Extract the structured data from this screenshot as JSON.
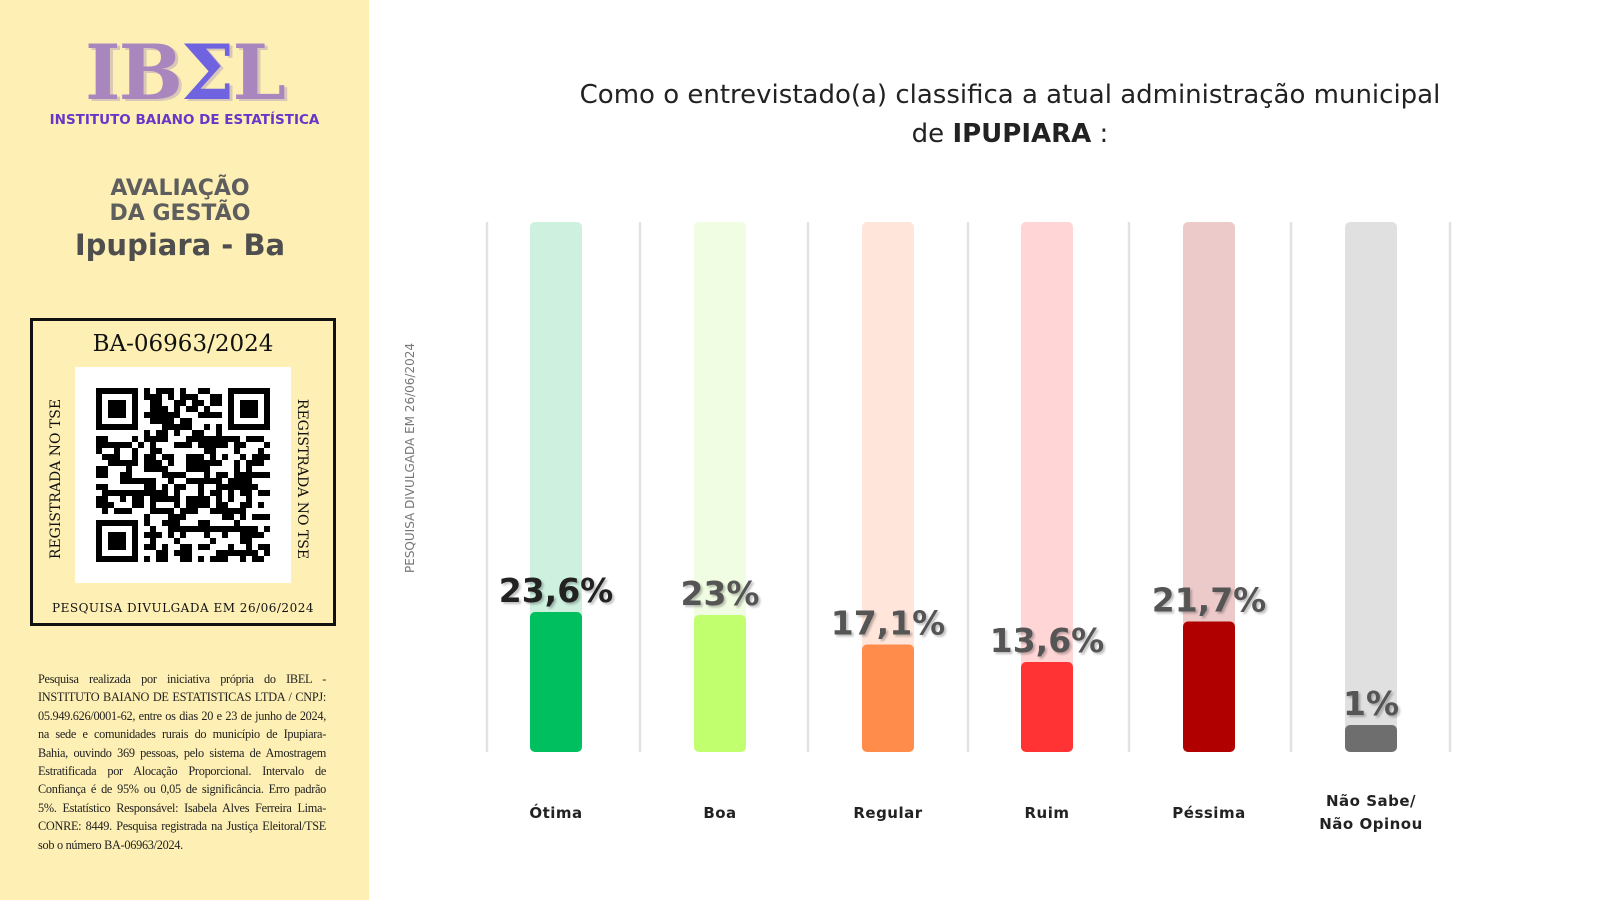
{
  "sidebar": {
    "logo": {
      "prefix": "IB",
      "sigma": "Σ",
      "suffix": "L"
    },
    "institute": "INSTITUTO BAIANO DE ESTATÍSTICA",
    "heading": "AVALIAÇÃO DA GESTÃO",
    "city": "Ipupiara - Ba",
    "registration": {
      "number": "BA-06963/2024",
      "side_left": "REGISTRADA NO TSE",
      "side_right": "REGISTRADA NO TSE",
      "footer": "PESQUISA DIVULGADA EM 26/06/2024"
    },
    "note": "Pesquisa realizada por iniciativa própria  do IBEL - INSTITUTO BAIANO DE ESTATISTICAS LTDA / CNPJ: 05.949.626/0001-62, entre os dias 20 e 23 de junho de 2024, na sede e comunidades rurais do município de Ipupiara-Bahia, ouvindo 369 pessoas, pelo sistema de Amostragem Estratificada por Alocação Proporcional. Intervalo de Confiança é de 95% ou 0,05 de significância. Erro padrão 5%. Estatístico Responsável: Isabela Alves Ferreira Lima- CONRE: 8449. Pesquisa registrada na Justiça Eleitoral/TSE sob o número BA-06963/2024."
  },
  "vertical_note": "PESQUISA DIVULGADA EM 26/06/2024",
  "chart_data": {
    "type": "bar",
    "title_line1": "Como o entrevistado(a) classifica a atual administração municipal",
    "title_prefix": "de ",
    "title_city": "IPUPIARA",
    "title_suffix": " :",
    "categories": [
      "Ótima",
      "Boa",
      "Regular",
      "Ruim",
      "Péssima",
      "Não Sabe/\nNão Opinou"
    ],
    "values": [
      23.6,
      23,
      17.1,
      13.6,
      21.7,
      1
    ],
    "data_labels": [
      "23,6%",
      "23%",
      "17,1%",
      "13,6%",
      "21,7%",
      "1%"
    ],
    "colors": [
      "#00BF5E",
      "#C2FF6E",
      "#FF8C4A",
      "#FF3333",
      "#B00000",
      "#6E6E6E"
    ],
    "track_colors": [
      "#CDF0DF",
      "#F0FDE2",
      "#FFE5DA",
      "#FFD5D5",
      "#EDCACA",
      "#E0E0E0"
    ],
    "grid": true,
    "legend": "none"
  }
}
